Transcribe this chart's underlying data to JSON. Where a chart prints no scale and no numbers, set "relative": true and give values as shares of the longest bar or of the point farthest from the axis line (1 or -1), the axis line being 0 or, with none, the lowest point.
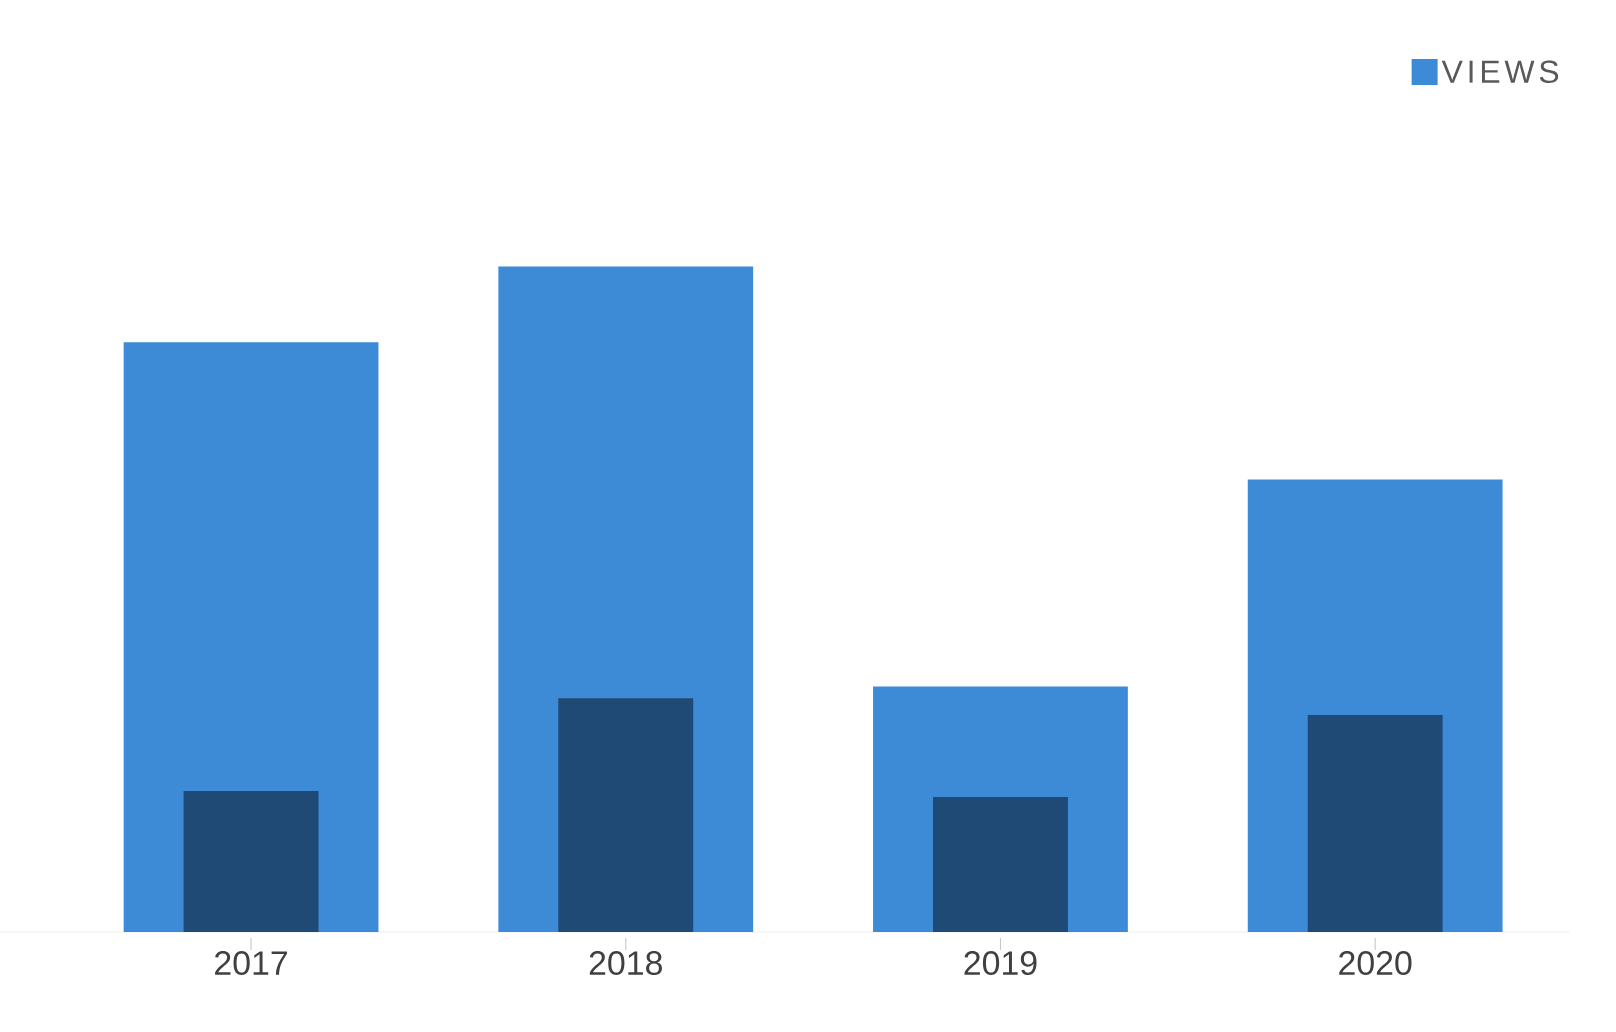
{
  "chart_data": {
    "type": "bar",
    "relative": true,
    "categories": [
      "2017",
      "2018",
      "2019",
      "2020"
    ],
    "series": [
      {
        "name": "VIEWS",
        "color": "#3d8ad6",
        "values": [
          0.886,
          1,
          0.369,
          0.68
        ]
      },
      {
        "color": "#1f4a75",
        "values": [
          0.212,
          0.351,
          0.203,
          0.326
        ]
      }
    ],
    "legend": "top right"
  }
}
